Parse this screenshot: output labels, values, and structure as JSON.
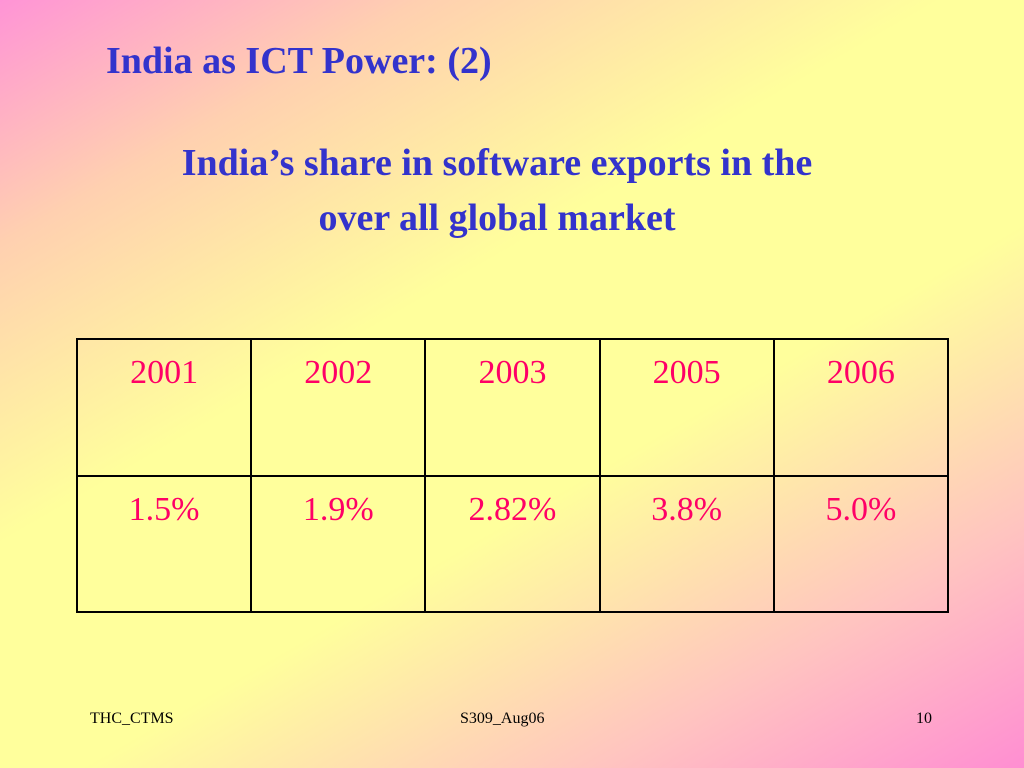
{
  "slide": {
    "title": "India as ICT Power: (2)",
    "subtitle_line1": "India’s share in software  exports  in the",
    "subtitle_line2": "over all global market"
  },
  "chart_data": {
    "type": "table",
    "title": "India’s share in software exports in the over all global market",
    "columns": [
      "2001",
      "2002",
      "2003",
      "2005",
      "2006"
    ],
    "values": [
      "1.5%",
      "1.9%",
      "2.82%",
      "3.8%",
      "5.0%"
    ],
    "numeric_values": [
      1.5,
      1.9,
      2.82,
      3.8,
      5.0
    ]
  },
  "footer": {
    "left": "THC_CTMS",
    "center": "S309_Aug06",
    "page_number": "10"
  },
  "colors": {
    "title": "#3333cc",
    "cell_text": "#ff0066",
    "border": "#000000"
  }
}
